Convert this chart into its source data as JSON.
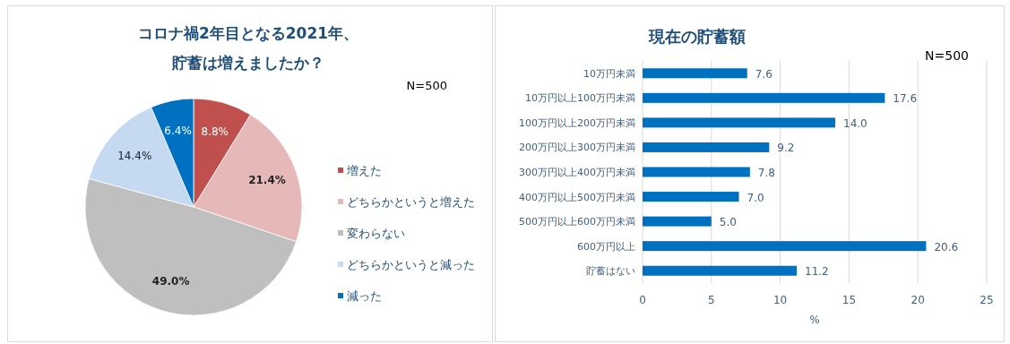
{
  "chart_data": [
    {
      "type": "pie",
      "title": "コロナ禍2年目となる2021年、貯蓄は増えましたか？",
      "categories": [
        "増えた",
        "どちらかというと増えた",
        "変わらない",
        "どちらかというと減った",
        "減った"
      ],
      "values": [
        8.8,
        21.4,
        49.0,
        14.4,
        6.4
      ],
      "colors": [
        "#c0504d",
        "#e6b9b8",
        "#bfbfbf",
        "#c5d9f1",
        "#0070c0"
      ],
      "value_labels": [
        "8.8%",
        "21.4%",
        "49.0%",
        "14.4%",
        "6.4%"
      ],
      "legend": "right",
      "annotations": [
        "N=500"
      ]
    },
    {
      "type": "bar",
      "orientation": "horizontal",
      "title": "現在の貯蓄額",
      "categories": [
        "10万円未満",
        "10万円以上100万円未満",
        "100万円以上200万円未満",
        "200万円以上300万円未満",
        "300万円以上400万円未満",
        "400万円以上500万円未満",
        "500万円以上600万円未満",
        "600万円以上",
        "貯蓄はない"
      ],
      "values": [
        7.6,
        17.6,
        14.0,
        9.2,
        7.8,
        7.0,
        5.0,
        20.6,
        11.2
      ],
      "value_labels": [
        "7.6",
        "17.6",
        "14.0",
        "9.2",
        "7.8",
        "7.0",
        "5.0",
        "20.6",
        "11.2"
      ],
      "color": "#0070c0",
      "xlim": [
        0,
        25
      ],
      "xticks": [
        0,
        5,
        10,
        15,
        20,
        25
      ],
      "xlabel": "%",
      "grid": "x",
      "annotations": [
        "N=500"
      ]
    }
  ]
}
